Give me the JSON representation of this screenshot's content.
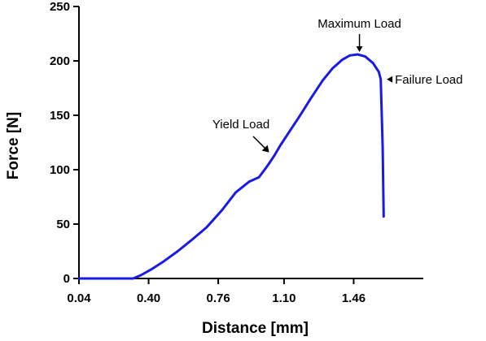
{
  "chart_data": {
    "type": "line",
    "xlabel": "Distance [mm]",
    "ylabel": "Force [N]",
    "xlim": [
      0.04,
      1.82
    ],
    "ylim": [
      0,
      250
    ],
    "x_ticks": [
      0.04,
      0.4,
      0.76,
      1.1,
      1.46
    ],
    "x_tick_labels": [
      "0.04",
      "0.40",
      "0.76",
      "1.10",
      "1.46"
    ],
    "y_ticks": [
      0,
      50,
      100,
      150,
      200,
      250
    ],
    "y_tick_labels": [
      "0",
      "50",
      "100",
      "150",
      "200",
      "250"
    ],
    "grid": false,
    "line_color": "#1a1ae6",
    "series": [
      {
        "x": [
          0.04,
          0.2,
          0.32,
          0.36,
          0.42,
          0.48,
          0.55,
          0.62,
          0.7,
          0.78,
          0.85,
          0.92,
          0.97,
          1.0,
          1.02,
          1.05,
          1.08,
          1.12,
          1.18,
          1.24,
          1.3,
          1.35,
          1.4,
          1.44,
          1.48,
          1.52,
          1.56,
          1.59,
          1.6,
          1.61,
          1.615
        ],
        "y": [
          0,
          0,
          0,
          3,
          9,
          16,
          25,
          35,
          47,
          63,
          79,
          89,
          93,
          100,
          105,
          113,
          122,
          133,
          149,
          166,
          182,
          193,
          201,
          205,
          206,
          204,
          198,
          190,
          183,
          120,
          57
        ]
      }
    ],
    "annotations": [
      {
        "text": "Maximum Load",
        "x": 1.49,
        "y": 206
      },
      {
        "text": "Yield Load",
        "x": 1.04,
        "y": 113
      },
      {
        "text": "Failure Load",
        "x": 1.61,
        "y": 183
      }
    ]
  }
}
